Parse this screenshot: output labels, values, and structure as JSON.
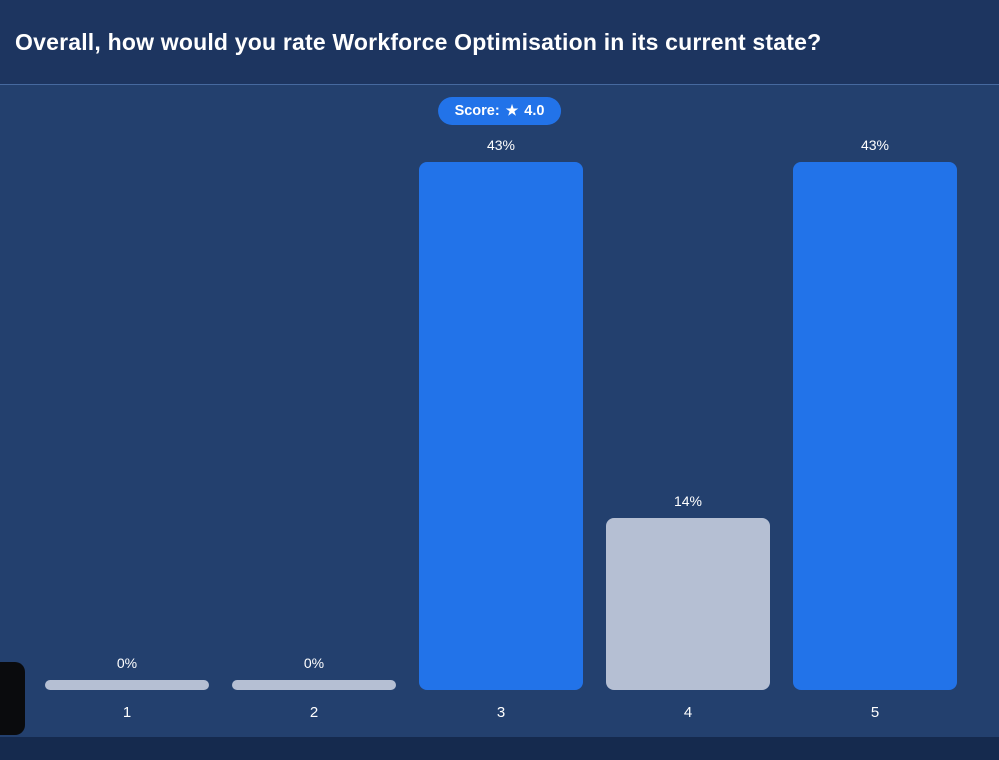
{
  "header": {
    "title": "Overall, how would you rate Workforce Optimisation in its current state?"
  },
  "score_badge": {
    "label": "Score:",
    "icon": "star-icon",
    "star_glyph": "★",
    "value": "4.0"
  },
  "chart_data": {
    "type": "bar",
    "title": "Overall, how would you rate Workforce Optimisation in its current state?",
    "categories": [
      "1",
      "2",
      "3",
      "4",
      "5"
    ],
    "values": [
      0,
      0,
      43,
      14,
      43
    ],
    "value_labels": [
      "0%",
      "0%",
      "43%",
      "14%",
      "43%"
    ],
    "score": 4.0,
    "xlabel": "",
    "ylabel": "",
    "ylim": [
      0,
      50
    ],
    "grid": false,
    "legend": false,
    "bar_colors": [
      "#b5bfd3",
      "#b5bfd3",
      "#2273e9",
      "#b5bfd3",
      "#2273e9"
    ]
  },
  "colors": {
    "accent_blue": "#2273e9",
    "bar_gray": "#b5bfd3",
    "background": "#23406e",
    "header_background": "#1d3560",
    "footer_background": "#152a4e",
    "header_border": "#46699f",
    "text": "#ffffff"
  }
}
